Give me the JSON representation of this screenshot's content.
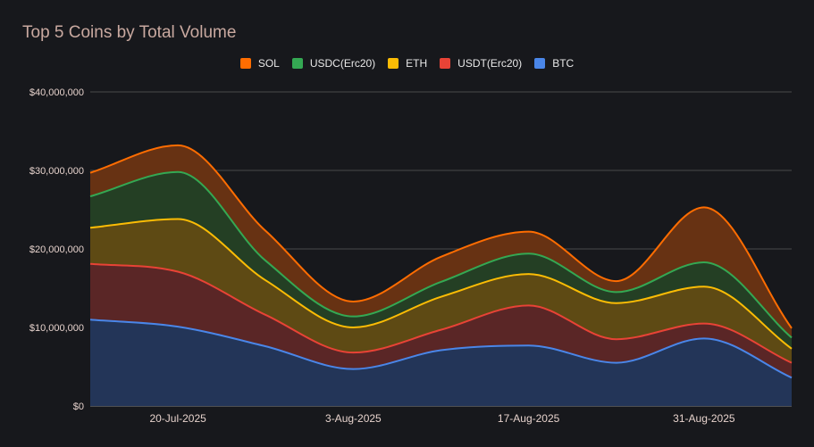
{
  "chart_data": {
    "type": "area",
    "stacked": true,
    "title": "Top 5 Coins by Total Volume",
    "xlabel": "",
    "ylabel": "",
    "ylim": [
      0,
      40000000
    ],
    "yticks": [
      "$0",
      "$10,000,000",
      "$20,000,000",
      "$30,000,000",
      "$40,000,000"
    ],
    "xtick_labels": [
      "20-Jul-2025",
      "3-Aug-2025",
      "17-Aug-2025",
      "31-Aug-2025"
    ],
    "xtick_positions": [
      1,
      3,
      5,
      7
    ],
    "x": [
      0,
      1,
      2,
      3,
      4,
      5,
      6,
      7,
      8
    ],
    "legend_order": [
      "SOL",
      "USDC(Erc20)",
      "ETH",
      "USDT(Erc20)",
      "BTC"
    ],
    "series": [
      {
        "name": "BTC",
        "color": "#4a86e8",
        "fill": "#233558",
        "values": [
          11000000,
          10100000,
          7600000,
          4700000,
          7100000,
          7700000,
          5500000,
          8600000,
          3600000
        ]
      },
      {
        "name": "USDT(Erc20)",
        "color": "#e84336",
        "fill": "#5a2626",
        "values": [
          7100000,
          7000000,
          4000000,
          2100000,
          2600000,
          5100000,
          3000000,
          1900000,
          1900000
        ]
      },
      {
        "name": "ETH",
        "color": "#fbbc05",
        "fill": "#5e4a14",
        "values": [
          4600000,
          6700000,
          4400000,
          3200000,
          4200000,
          4000000,
          4600000,
          4700000,
          1800000
        ]
      },
      {
        "name": "USDC(Erc20)",
        "color": "#34a853",
        "fill": "#243f24",
        "values": [
          4000000,
          6000000,
          2500000,
          1400000,
          1900000,
          2600000,
          1400000,
          3100000,
          1400000
        ]
      },
      {
        "name": "SOL",
        "color": "#ff6d01",
        "fill": "#673213",
        "values": [
          3000000,
          3400000,
          3800000,
          1900000,
          3200000,
          2800000,
          1400000,
          7000000,
          1200000
        ]
      }
    ]
  }
}
